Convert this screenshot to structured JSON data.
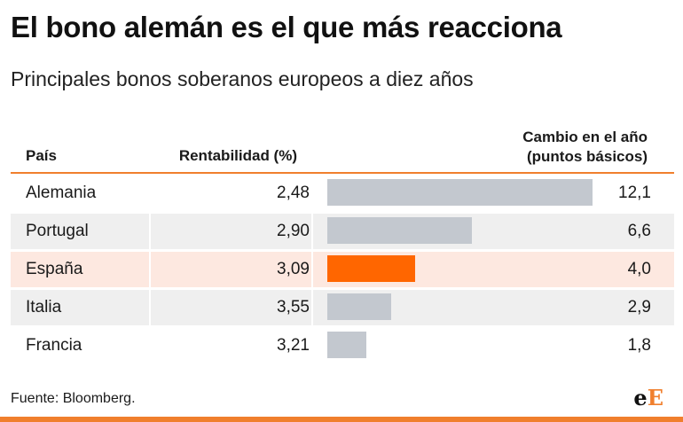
{
  "title": "El bono alemán es el que más reacciona",
  "subtitle": "Principales bonos soberanos europeos a diez años",
  "headers": {
    "country": "País",
    "yield": "Rentabilidad (%)",
    "change_line1": "Cambio en el año",
    "change_line2": "(puntos básicos)"
  },
  "rows": [
    {
      "country": "Alemania",
      "yield": "2,48",
      "change": "12,1"
    },
    {
      "country": "Portugal",
      "yield": "2,90",
      "change": "6,6"
    },
    {
      "country": "España",
      "yield": "3,09",
      "change": "4,0"
    },
    {
      "country": "Italia",
      "yield": "3,55",
      "change": "2,9"
    },
    {
      "country": "Francia",
      "yield": "3,21",
      "change": "1,8"
    }
  ],
  "highlight_country": "España",
  "source": "Fuente: Bloomberg.",
  "logo": {
    "part1": "e",
    "part2": "E"
  },
  "colors": {
    "accent": "#f07f2d",
    "highlight_bar": "#ff6600",
    "bar": "#c3c8cf",
    "highlight_row": "#fde8e0",
    "alt_row": "#efefef"
  },
  "chart_data": {
    "type": "table",
    "title": "El bono alemán es el que más reacciona",
    "subtitle": "Principales bonos soberanos europeos a diez años",
    "columns": [
      "País",
      "Rentabilidad (%)",
      "Cambio en el año (puntos básicos)"
    ],
    "categories": [
      "Alemania",
      "Portugal",
      "España",
      "Italia",
      "Francia"
    ],
    "series": [
      {
        "name": "Rentabilidad (%)",
        "values": [
          2.48,
          2.9,
          3.09,
          3.55,
          3.21
        ]
      },
      {
        "name": "Cambio en el año (puntos básicos)",
        "values": [
          12.1,
          6.6,
          4.0,
          2.9,
          1.8
        ]
      }
    ],
    "bar_series": "Cambio en el año (puntos básicos)",
    "bar_xlim": [
      0,
      15.5
    ],
    "highlight": "España",
    "source": "Fuente: Bloomberg."
  }
}
